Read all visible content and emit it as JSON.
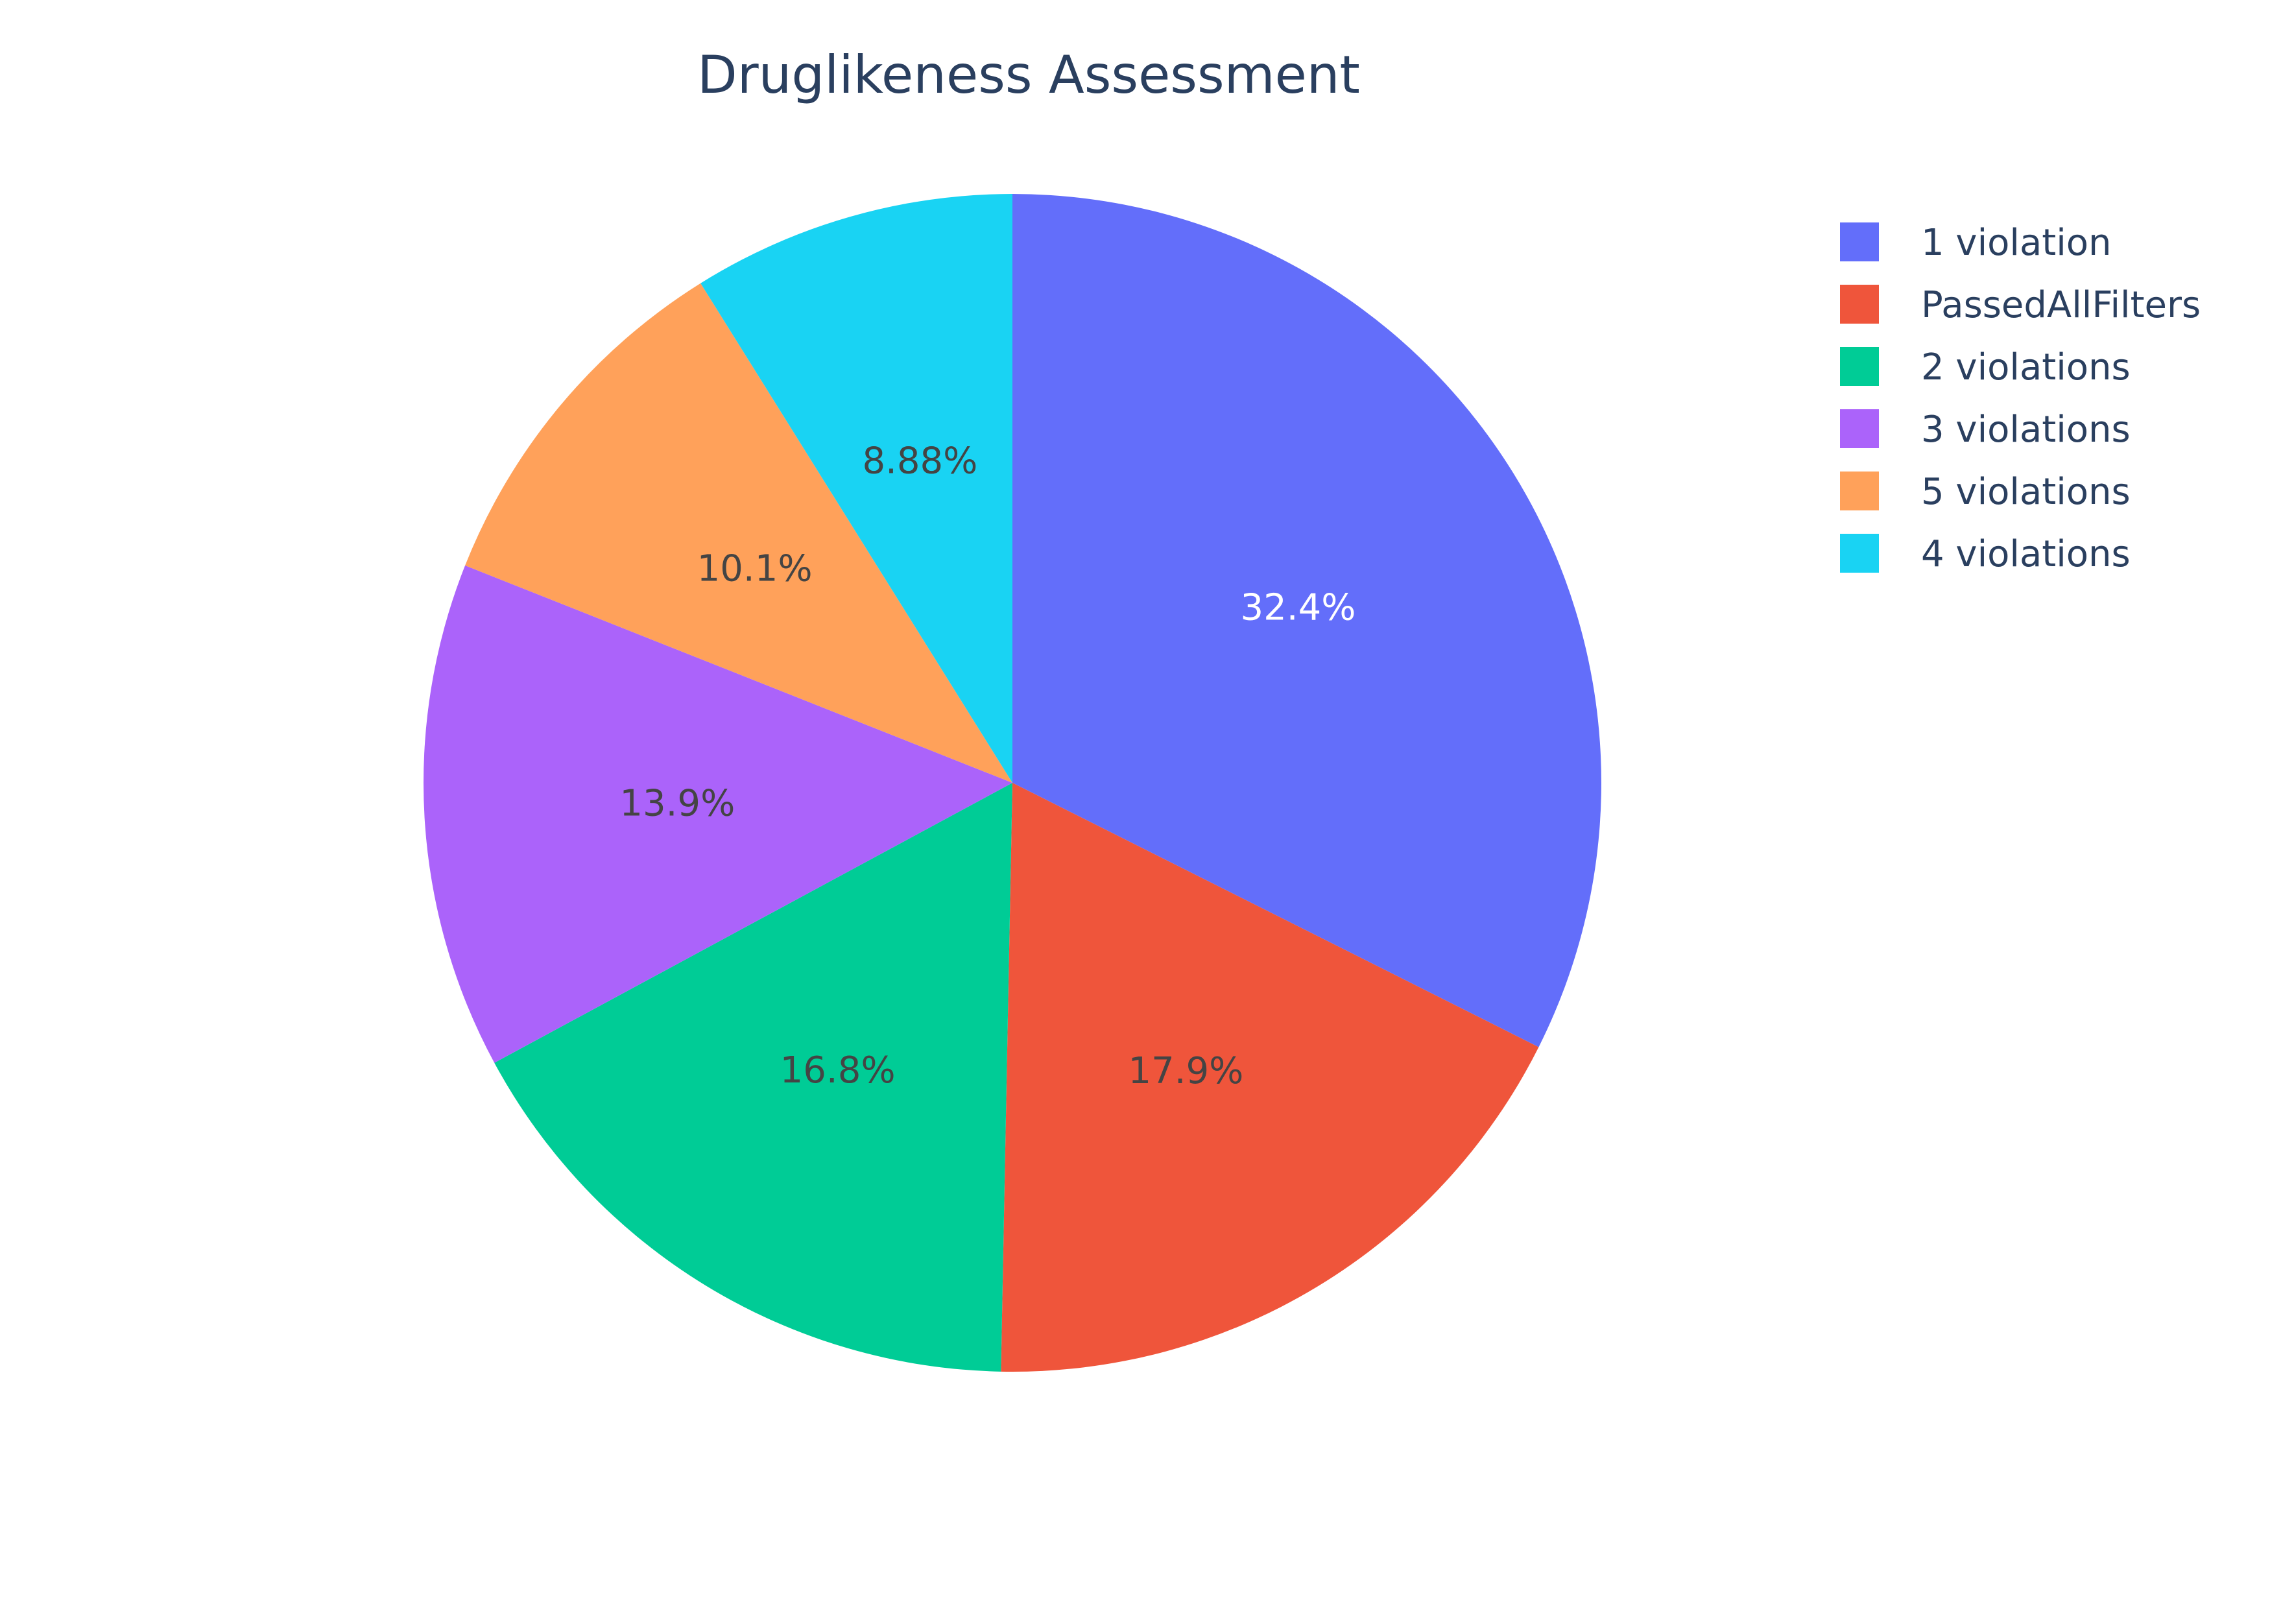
{
  "chart_data": {
    "type": "pie",
    "title": "Druglikeness Assessment",
    "categories": [
      "1 violation",
      "PassedAllFilters",
      "2 violations",
      "3 violations",
      "5 violations",
      "4 violations"
    ],
    "values": [
      32.4,
      17.9,
      16.8,
      13.9,
      10.1,
      8.88
    ],
    "value_labels": [
      "32.4%",
      "17.9%",
      "16.8%",
      "13.9%",
      "10.1%",
      "8.88%"
    ],
    "colors": [
      "#636efa",
      "#ef553b",
      "#00cc96",
      "#ab63fa",
      "#ffa15a",
      "#19d3f3"
    ],
    "label_colors": [
      "#ffffff",
      "#444444",
      "#444444",
      "#444444",
      "#444444",
      "#444444"
    ],
    "direction": "clockwise",
    "start_angle_deg": 0,
    "legend_placement": "top-right"
  }
}
